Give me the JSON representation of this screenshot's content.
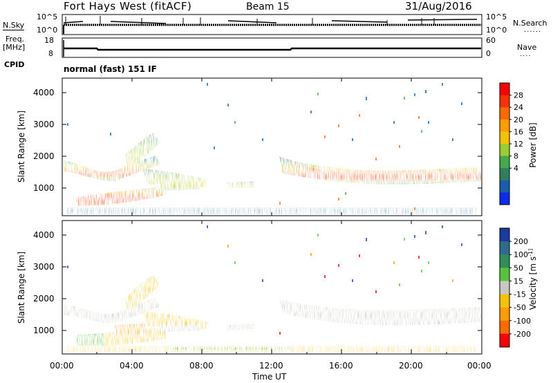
{
  "header": {
    "station": "Fort Hays West (fitACF)",
    "beam": "Beam 15",
    "date": "31/Aug/2016"
  },
  "top_panels": {
    "nsky_label": "N.Sky",
    "nsky_ticks": [
      "10^5",
      "10^0"
    ],
    "nsearch_label": "N.Search",
    "nsearch_ticks": [
      "10^5",
      "10^0"
    ],
    "freq_label_1": "Freq.",
    "freq_label_2": "[MHz]",
    "freq_ticks": [
      "18",
      "8"
    ],
    "nave_label": "Nave",
    "nave_ticks": [
      "60",
      "0"
    ],
    "cpid_label": "CPID",
    "cpid_value": "normal (fast) 151 IF"
  },
  "chart_data": [
    {
      "type": "heatmap",
      "name": "power",
      "ylabel": "Slant Range [km]",
      "yticks": [
        "4000",
        "3000",
        "2000",
        "1000"
      ],
      "ylim": [
        180,
        4500
      ],
      "xlim_hours": [
        0,
        24
      ],
      "colorbar_label": "Power [dB]",
      "colorbar_ticks": [
        "28",
        "24",
        "20",
        "16",
        "12",
        "8",
        "4"
      ],
      "colorbar_colors": [
        "#ff0000",
        "#ff3000",
        "#ff6a00",
        "#ff9d00",
        "#f7c200",
        "#9ccd30",
        "#44a94a",
        "#2f7f5c",
        "#1a5daa",
        "#0a2cf0"
      ],
      "echo_regions": [
        {
          "from_h": 0.0,
          "to_h": 3.5,
          "range_km": [
            1450,
            1800
          ],
          "level": "high"
        },
        {
          "from_h": 0.5,
          "to_h": 4.5,
          "range_km": [
            500,
            800
          ],
          "level": "high"
        },
        {
          "from_h": 2.0,
          "to_h": 4.5,
          "range_km": [
            1600,
            2700
          ],
          "level": "medium"
        },
        {
          "from_h": 4.0,
          "to_h": 7.5,
          "range_km": [
            900,
            1500
          ],
          "level": "medium"
        },
        {
          "from_h": 9.0,
          "to_h": 11.0,
          "range_km": [
            950,
            1150
          ],
          "level": "medium"
        },
        {
          "from_h": 12.5,
          "to_h": 24.0,
          "range_km": [
            1100,
            1800
          ],
          "level": "high"
        },
        {
          "from_h": 0.5,
          "to_h": 21.0,
          "range_km": [
            200,
            400
          ],
          "level": "low"
        }
      ]
    },
    {
      "type": "heatmap",
      "name": "velocity",
      "ylabel": "Slant Range [km]",
      "yticks": [
        "4000",
        "3000",
        "2000",
        "1000"
      ],
      "ylim": [
        180,
        4500
      ],
      "xlim_hours": [
        0,
        24
      ],
      "xticks": [
        "00:00",
        "04:00",
        "08:00",
        "12:00",
        "16:00",
        "20:00",
        "00:00"
      ],
      "xlabel": "Time UT",
      "colorbar_label": "Velocity [m s^-1]",
      "colorbar_ticks": [
        "200",
        "100",
        "50",
        "15",
        "-15",
        "-50",
        "-100",
        "-200"
      ],
      "colorbar_colors": [
        "#1b3a9e",
        "#2e6b8f",
        "#2f8f58",
        "#59c23b",
        "#c8c8c0",
        "#f7c200",
        "#ff9d00",
        "#ff6a00",
        "#ff0000"
      ]
    }
  ]
}
